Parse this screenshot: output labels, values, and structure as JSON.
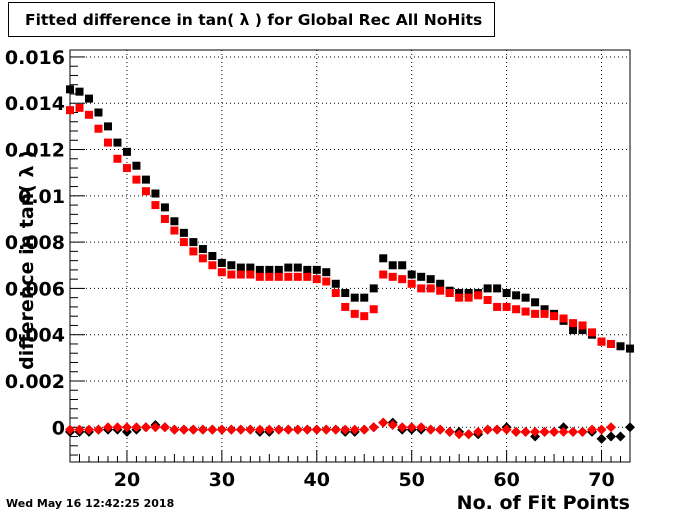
{
  "title": "Fitted difference in tan( λ ) for Global Rec All NoHits",
  "timestamp": "Wed May 16 12:42:25 2018",
  "chart_data": {
    "type": "scatter",
    "title": "Fitted difference in tan( λ ) for Global Rec All NoHits",
    "xlabel": "No. of Fit Points",
    "ylabel": "difference in tan( λ )",
    "xlim": [
      14,
      73
    ],
    "ylim": [
      -0.0015,
      0.0163
    ],
    "grid": true,
    "legend": "none",
    "x_ticks": [
      20,
      30,
      40,
      50,
      60,
      70
    ],
    "y_ticks": [
      0,
      0.002,
      0.004,
      0.006,
      0.008,
      0.01,
      0.012,
      0.014,
      0.016
    ],
    "x_tick_labels": [
      "20",
      "30",
      "40",
      "50",
      "60",
      "70"
    ],
    "y_tick_labels": [
      "0",
      "0.002",
      "0.004",
      "0.006",
      "0.008",
      "0.01",
      "0.012",
      "0.014",
      "0.016"
    ],
    "series": [
      {
        "marker": "square",
        "color": "#000000",
        "x": [
          14,
          15,
          16,
          17,
          18,
          19,
          20,
          21,
          22,
          23,
          24,
          25,
          26,
          27,
          28,
          29,
          30,
          31,
          32,
          33,
          34,
          35,
          36,
          37,
          38,
          39,
          40,
          41,
          42,
          43,
          44,
          45,
          46,
          47,
          48,
          49,
          50,
          51,
          52,
          53,
          54,
          55,
          56,
          57,
          58,
          59,
          60,
          61,
          62,
          63,
          64,
          65,
          66,
          67,
          68,
          69,
          70,
          71,
          72,
          73
        ],
        "y": [
          0.0146,
          0.0145,
          0.0142,
          0.0136,
          0.013,
          0.0123,
          0.0119,
          0.0113,
          0.0107,
          0.0101,
          0.0095,
          0.0089,
          0.0084,
          0.008,
          0.0077,
          0.0074,
          0.0071,
          0.007,
          0.0069,
          0.0069,
          0.0068,
          0.0068,
          0.0068,
          0.0069,
          0.0069,
          0.0068,
          0.0068,
          0.0067,
          0.0062,
          0.0058,
          0.0056,
          0.0056,
          0.006,
          0.0073,
          0.007,
          0.007,
          0.0066,
          0.0065,
          0.0064,
          0.0062,
          0.0059,
          0.0058,
          0.0058,
          0.0058,
          0.006,
          0.006,
          0.0058,
          0.0057,
          0.0056,
          0.0054,
          0.0051,
          0.0049,
          0.0046,
          0.0042,
          0.0042,
          0.004,
          0.0037,
          0.0036,
          0.0035,
          0.0034
        ]
      },
      {
        "marker": "square",
        "color": "#ff0000",
        "x": [
          14,
          15,
          16,
          17,
          18,
          19,
          20,
          21,
          22,
          23,
          24,
          25,
          26,
          27,
          28,
          29,
          30,
          31,
          32,
          33,
          34,
          35,
          36,
          37,
          38,
          39,
          40,
          41,
          42,
          43,
          44,
          45,
          46,
          47,
          48,
          49,
          50,
          51,
          52,
          53,
          54,
          55,
          56,
          57,
          58,
          59,
          60,
          61,
          62,
          63,
          64,
          65,
          66,
          67,
          68,
          69,
          70,
          71
        ],
        "y": [
          0.0137,
          0.0138,
          0.0135,
          0.0129,
          0.0123,
          0.0116,
          0.0112,
          0.0107,
          0.0102,
          0.0096,
          0.009,
          0.0085,
          0.008,
          0.0076,
          0.0073,
          0.007,
          0.0067,
          0.0066,
          0.0066,
          0.0066,
          0.0065,
          0.0065,
          0.0065,
          0.0065,
          0.0065,
          0.0065,
          0.0064,
          0.0063,
          0.0058,
          0.0052,
          0.0049,
          0.0048,
          0.0051,
          0.0066,
          0.0065,
          0.0064,
          0.0062,
          0.006,
          0.006,
          0.0059,
          0.0058,
          0.0056,
          0.0056,
          0.0057,
          0.0055,
          0.0052,
          0.0052,
          0.0051,
          0.005,
          0.0049,
          0.0049,
          0.0048,
          0.0047,
          0.0045,
          0.0044,
          0.0041,
          0.0037,
          0.0036
        ]
      },
      {
        "marker": "diamond",
        "color": "#000000",
        "x": [
          14,
          15,
          16,
          17,
          18,
          19,
          20,
          21,
          22,
          23,
          24,
          25,
          26,
          27,
          28,
          29,
          30,
          31,
          32,
          33,
          34,
          35,
          36,
          37,
          38,
          39,
          40,
          41,
          42,
          43,
          44,
          45,
          46,
          47,
          48,
          49,
          50,
          51,
          52,
          53,
          54,
          55,
          56,
          57,
          58,
          59,
          60,
          61,
          62,
          63,
          64,
          65,
          66,
          67,
          68,
          69,
          70,
          71,
          72,
          73
        ],
        "y": [
          -0.0002,
          -0.0002,
          -0.0002,
          -0.0001,
          -0.0001,
          -0.0001,
          -0.0002,
          -0.0001,
          0.0,
          0.0001,
          0.0,
          -0.0001,
          -0.0001,
          -0.0001,
          -0.0001,
          -0.0001,
          -0.0001,
          -0.0001,
          -0.0001,
          -0.0001,
          -0.0002,
          -0.0002,
          -0.0001,
          -0.0001,
          -0.0001,
          -0.0001,
          -0.0001,
          -0.0001,
          -0.0001,
          -0.0002,
          -0.0002,
          -0.0001,
          0.0,
          0.0002,
          0.0002,
          -0.0001,
          -0.0001,
          -0.0001,
          -0.0001,
          -0.0001,
          -0.0002,
          -0.0002,
          -0.0003,
          -0.0003,
          -0.0001,
          -0.0001,
          0.0,
          -0.0002,
          -0.0002,
          -0.0004,
          -0.0002,
          -0.0002,
          0.0,
          -0.0002,
          -0.0002,
          -0.0002,
          -0.0005,
          -0.0004,
          -0.0004,
          0.0
        ]
      },
      {
        "marker": "diamond",
        "color": "#ff0000",
        "x": [
          14,
          15,
          16,
          17,
          18,
          19,
          20,
          21,
          22,
          23,
          24,
          25,
          26,
          27,
          28,
          29,
          30,
          31,
          32,
          33,
          34,
          35,
          36,
          37,
          38,
          39,
          40,
          41,
          42,
          43,
          44,
          45,
          46,
          47,
          48,
          49,
          50,
          51,
          52,
          53,
          54,
          55,
          56,
          57,
          58,
          59,
          60,
          61,
          62,
          63,
          64,
          65,
          66,
          67,
          68,
          69,
          70,
          71
        ],
        "y": [
          -0.0001,
          -0.0001,
          -0.0001,
          -0.0001,
          0.0,
          0.0,
          0.0,
          0.0,
          0.0,
          0.0,
          0.0,
          -0.0001,
          -0.0001,
          -0.0001,
          -0.0001,
          -0.0001,
          -0.0001,
          -0.0001,
          -0.0001,
          -0.0001,
          -0.0001,
          -0.0001,
          -0.0001,
          -0.0001,
          -0.0001,
          -0.0001,
          -0.0001,
          -0.0001,
          -0.0001,
          -0.0001,
          -0.0001,
          -0.0001,
          0.0,
          0.0002,
          0.0001,
          0.0,
          0.0,
          0.0,
          -0.0001,
          -0.0001,
          -0.0002,
          -0.0003,
          -0.0003,
          -0.0002,
          -0.0001,
          -0.0001,
          -0.0001,
          -0.0002,
          -0.0002,
          -0.0002,
          -0.0002,
          -0.0002,
          -0.0002,
          -0.0002,
          -0.0002,
          -0.0001,
          -0.0001,
          0.0
        ]
      }
    ]
  }
}
